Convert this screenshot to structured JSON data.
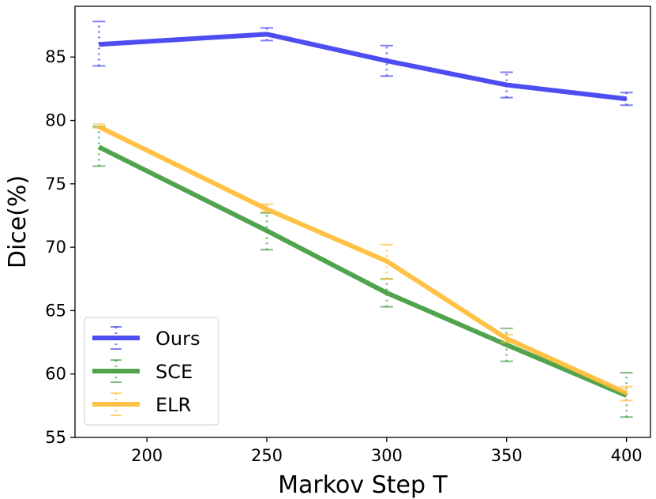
{
  "chart_data": {
    "type": "line",
    "title": "",
    "xlabel": "Markov Step T",
    "ylabel": "Dice(%)",
    "x": [
      180,
      250,
      300,
      350,
      400
    ],
    "xlim": [
      170,
      410
    ],
    "ylim": [
      55,
      89
    ],
    "xticks": [
      200,
      250,
      300,
      350,
      400
    ],
    "yticks": [
      55,
      60,
      65,
      70,
      75,
      80,
      85
    ],
    "grid": false,
    "legend_position": "lower-left",
    "series": [
      {
        "name": "Ours",
        "color": "#3a3af0",
        "values": [
          86.0,
          86.8,
          84.7,
          82.8,
          81.7
        ],
        "err_low": [
          84.3,
          86.3,
          83.5,
          81.8,
          81.2
        ],
        "err_high": [
          87.8,
          87.3,
          85.9,
          83.8,
          82.2
        ]
      },
      {
        "name": "SCE",
        "color": "#3d9a3a",
        "values": [
          77.9,
          71.3,
          66.4,
          62.3,
          58.3
        ],
        "err_low": [
          76.4,
          69.8,
          65.3,
          61.0,
          56.6
        ],
        "err_high": [
          79.5,
          72.7,
          67.5,
          63.6,
          60.1
        ]
      },
      {
        "name": "ELR",
        "color": "#ffbb33",
        "values": [
          79.5,
          73.0,
          68.9,
          62.8,
          58.5
        ],
        "err_low": [
          79.4,
          72.8,
          67.5,
          62.5,
          57.9
        ],
        "err_high": [
          79.7,
          73.4,
          70.2,
          63.1,
          59.0
        ]
      }
    ]
  }
}
